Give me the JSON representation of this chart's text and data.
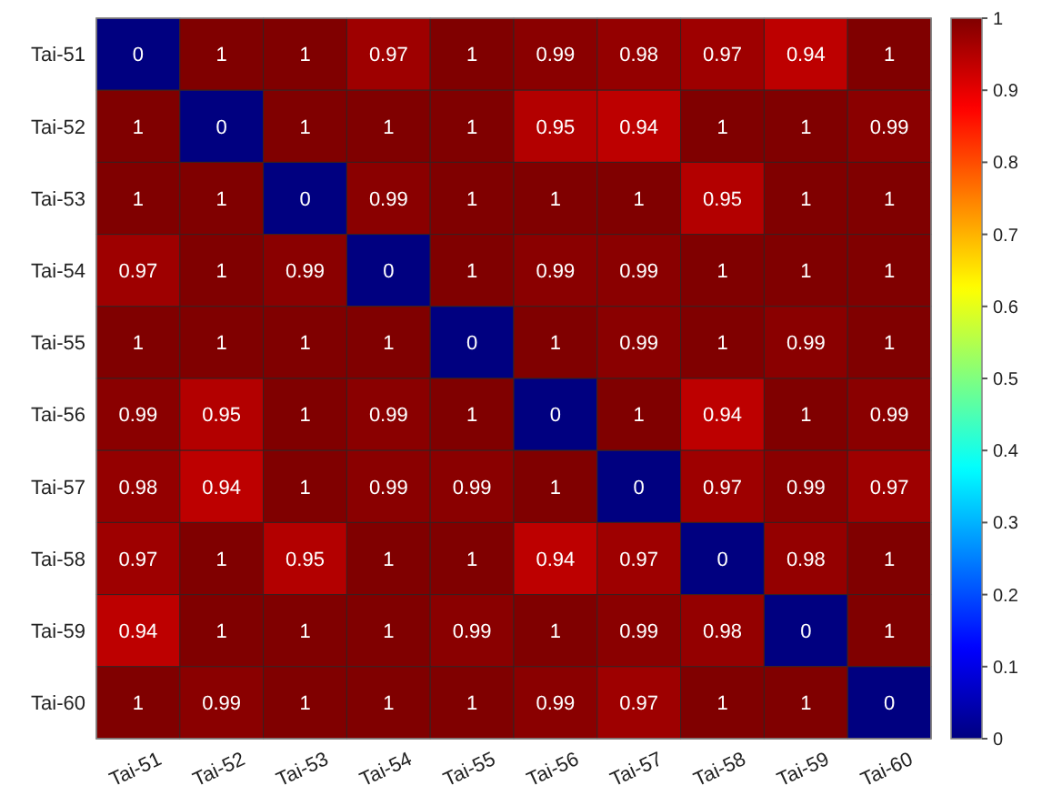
{
  "chart_data": {
    "type": "heatmap",
    "categories": [
      "Tai-51",
      "Tai-52",
      "Tai-53",
      "Tai-54",
      "Tai-55",
      "Tai-56",
      "Tai-57",
      "Tai-58",
      "Tai-59",
      "Tai-60"
    ],
    "y_categories": [
      "Tai-51",
      "Tai-52",
      "Tai-53",
      "Tai-54",
      "Tai-55",
      "Tai-56",
      "Tai-57",
      "Tai-58",
      "Tai-59",
      "Tai-60"
    ],
    "cells": [
      [
        0,
        1,
        1,
        0.97,
        1,
        0.99,
        0.98,
        0.97,
        0.94,
        1
      ],
      [
        1,
        0,
        1,
        1,
        1,
        0.95,
        0.94,
        1,
        1,
        0.99
      ],
      [
        1,
        1,
        0,
        0.99,
        1,
        1,
        1,
        0.95,
        1,
        1
      ],
      [
        0.97,
        1,
        0.99,
        0,
        1,
        0.99,
        0.99,
        1,
        1,
        1
      ],
      [
        1,
        1,
        1,
        1,
        0,
        1,
        0.99,
        1,
        0.99,
        1
      ],
      [
        0.99,
        0.95,
        1,
        0.99,
        1,
        0,
        1,
        0.94,
        1,
        0.99
      ],
      [
        0.98,
        0.94,
        1,
        0.99,
        0.99,
        1,
        0,
        0.97,
        0.99,
        0.97
      ],
      [
        0.97,
        1,
        0.95,
        1,
        1,
        0.94,
        0.97,
        0,
        0.98,
        1
      ],
      [
        0.94,
        1,
        1,
        1,
        0.99,
        1,
        0.99,
        0.98,
        0,
        1
      ],
      [
        1,
        0.99,
        1,
        1,
        1,
        0.99,
        0.97,
        1,
        1,
        0
      ]
    ],
    "clim": [
      0,
      1
    ],
    "cticks": [
      0,
      0.1,
      0.2,
      0.3,
      0.4,
      0.5,
      0.6,
      0.7,
      0.8,
      0.9,
      1
    ],
    "data_labels": true
  }
}
